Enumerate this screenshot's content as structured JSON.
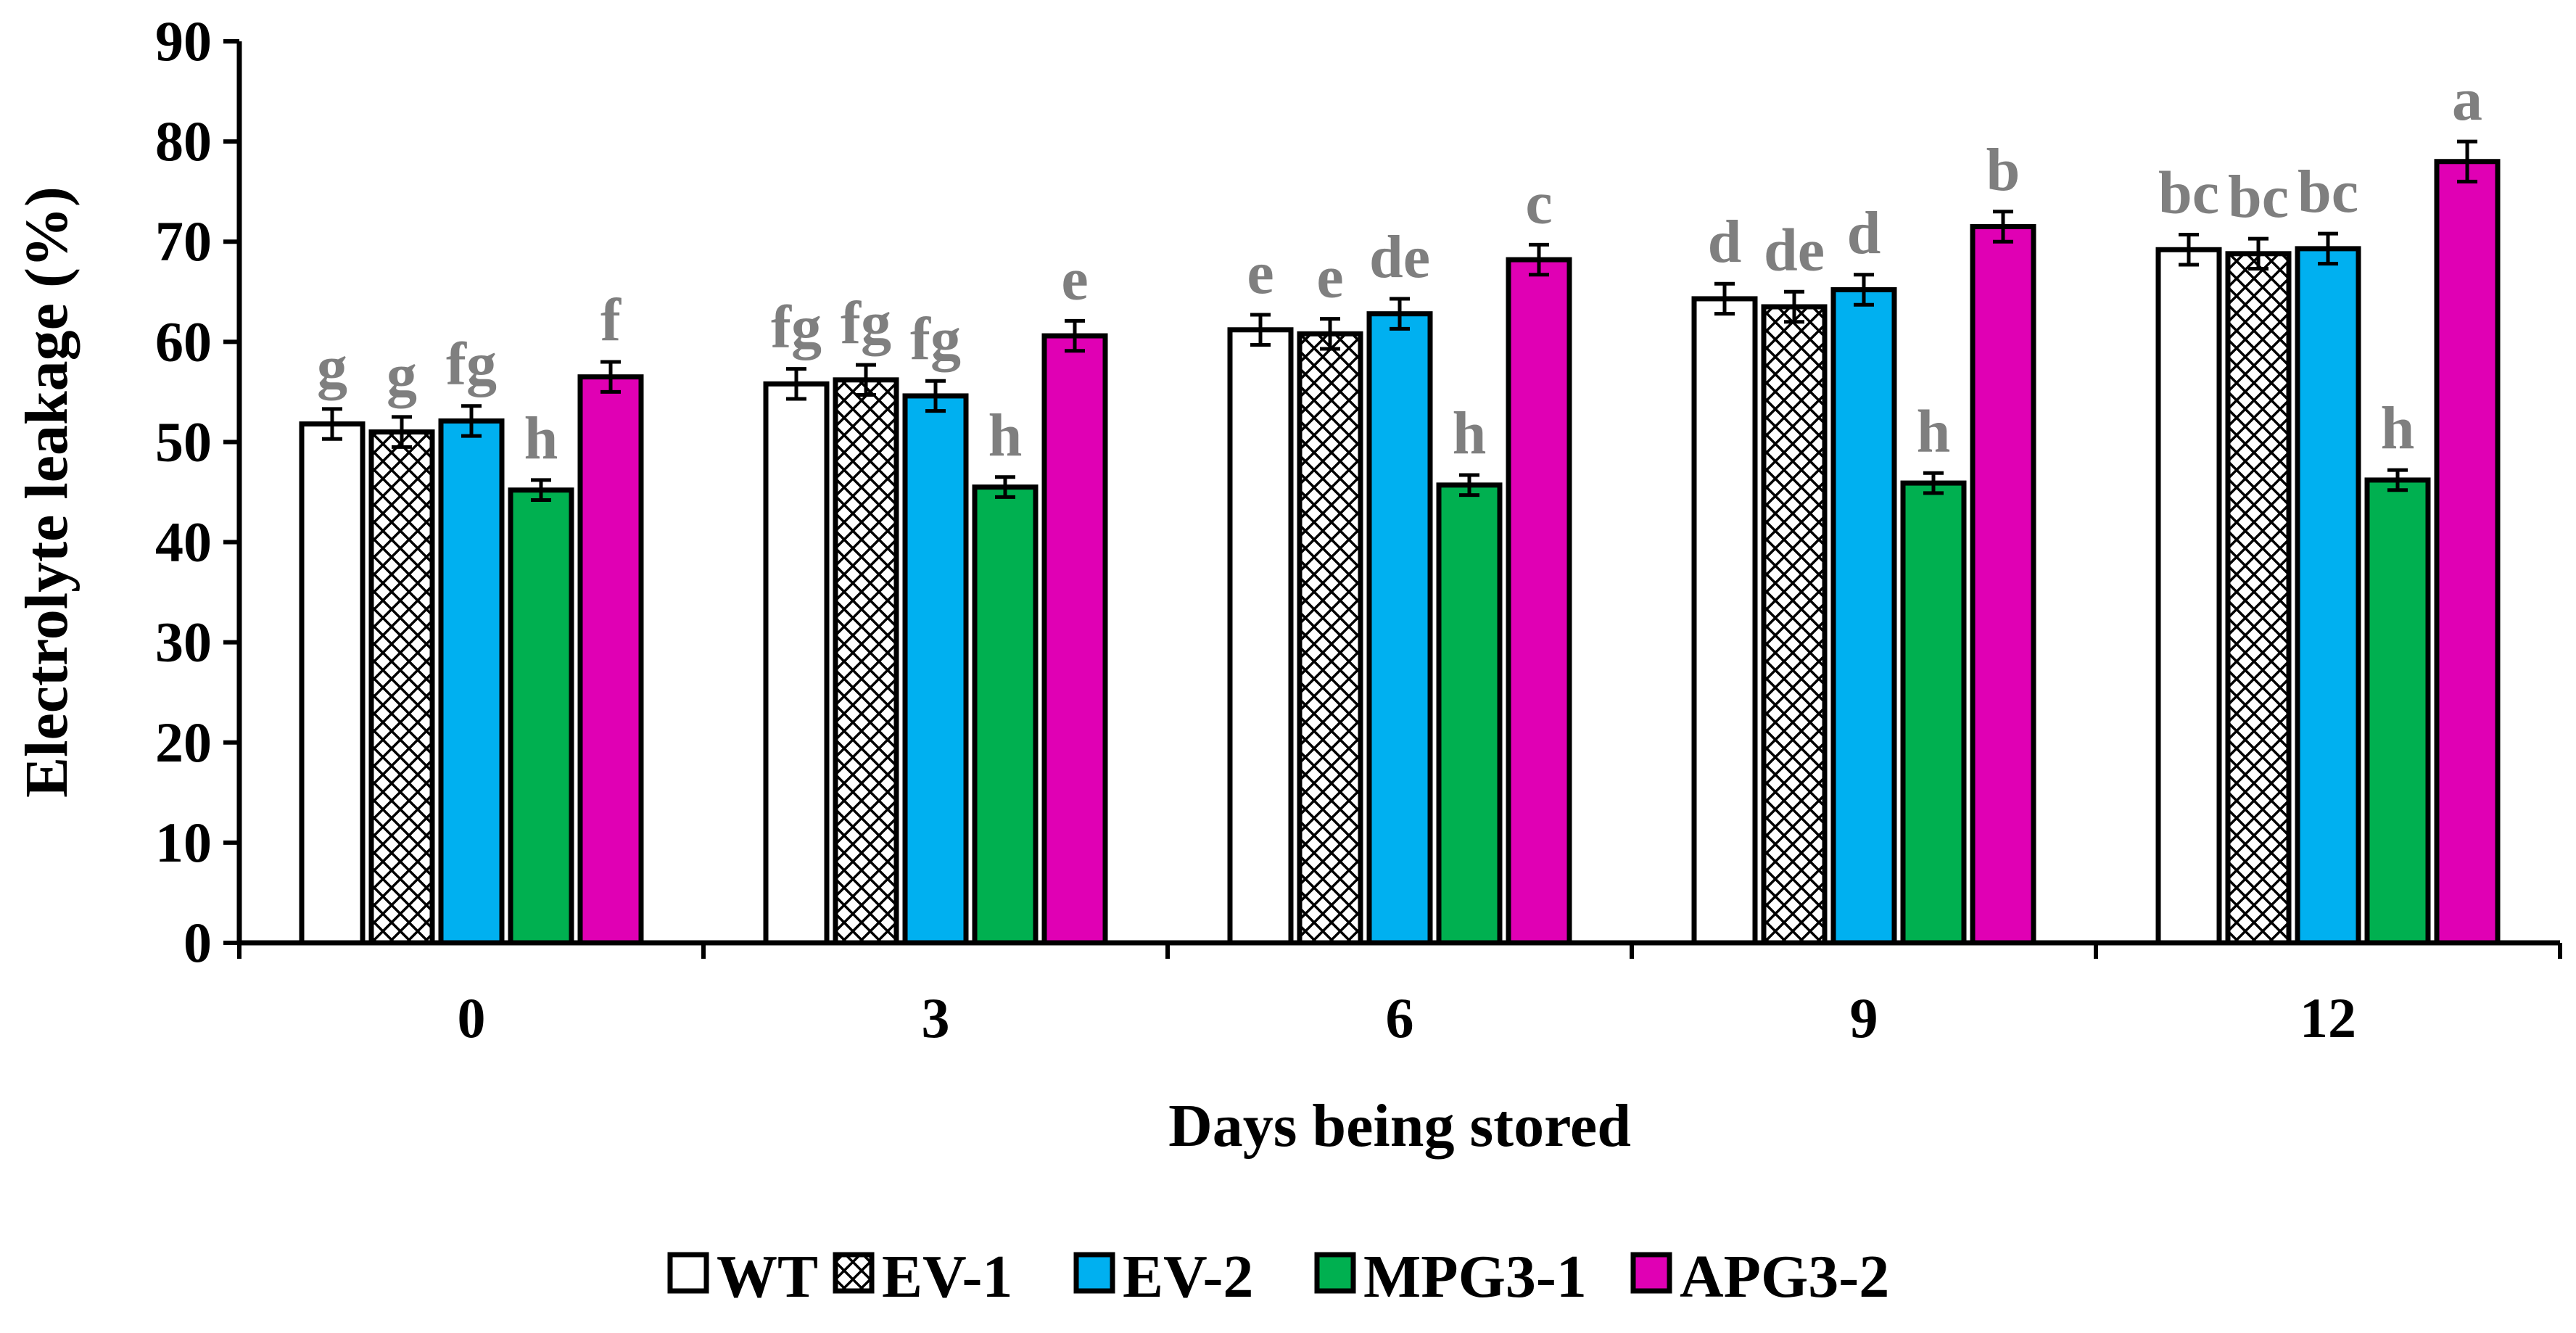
{
  "chart_data": {
    "type": "bar",
    "title": "",
    "xlabel": "Days being stored",
    "ylabel": "Electrolyte leakage (%)",
    "ylim": [
      0,
      90
    ],
    "yticks": [
      "0",
      "10",
      "20",
      "30",
      "40",
      "50",
      "60",
      "70",
      "80",
      "90"
    ],
    "categories": [
      "0",
      "3",
      "6",
      "9",
      "12"
    ],
    "grid": false,
    "legend_position": "bottom",
    "series": [
      {
        "name": "WT",
        "color": "#ffffff",
        "pattern": "solid",
        "values": [
          51.8,
          55.8,
          61.2,
          64.3,
          69.2
        ],
        "errors": [
          1.5,
          1.5,
          1.5,
          1.5,
          1.5
        ],
        "letters": [
          "g",
          "fg",
          "e",
          "d",
          "bc"
        ]
      },
      {
        "name": "EV-1",
        "color": "#ffffff",
        "pattern": "crosshatch",
        "values": [
          51.0,
          56.2,
          60.8,
          63.5,
          68.8
        ],
        "errors": [
          1.5,
          1.5,
          1.5,
          1.5,
          1.5
        ],
        "letters": [
          "g",
          "fg",
          "e",
          "de",
          "bc"
        ]
      },
      {
        "name": "EV-2",
        "color": "#00b0f0",
        "pattern": "solid",
        "values": [
          52.1,
          54.6,
          62.8,
          65.2,
          69.3
        ],
        "errors": [
          1.5,
          1.5,
          1.5,
          1.5,
          1.5
        ],
        "letters": [
          "fg",
          "fg",
          "de",
          "d",
          "bc"
        ]
      },
      {
        "name": "MPG3-1",
        "color": "#00b050",
        "pattern": "solid",
        "values": [
          45.2,
          45.5,
          45.7,
          45.9,
          46.2
        ],
        "errors": [
          1.0,
          1.0,
          1.0,
          1.0,
          1.0
        ],
        "letters": [
          "h",
          "h",
          "h",
          "h",
          "h"
        ]
      },
      {
        "name": "APG3-2",
        "color": "#e000b4",
        "pattern": "solid",
        "values": [
          56.5,
          60.6,
          68.2,
          71.5,
          78.0
        ],
        "errors": [
          1.5,
          1.5,
          1.5,
          1.5,
          2.0
        ],
        "letters": [
          "f",
          "e",
          "c",
          "b",
          "a"
        ]
      }
    ]
  }
}
